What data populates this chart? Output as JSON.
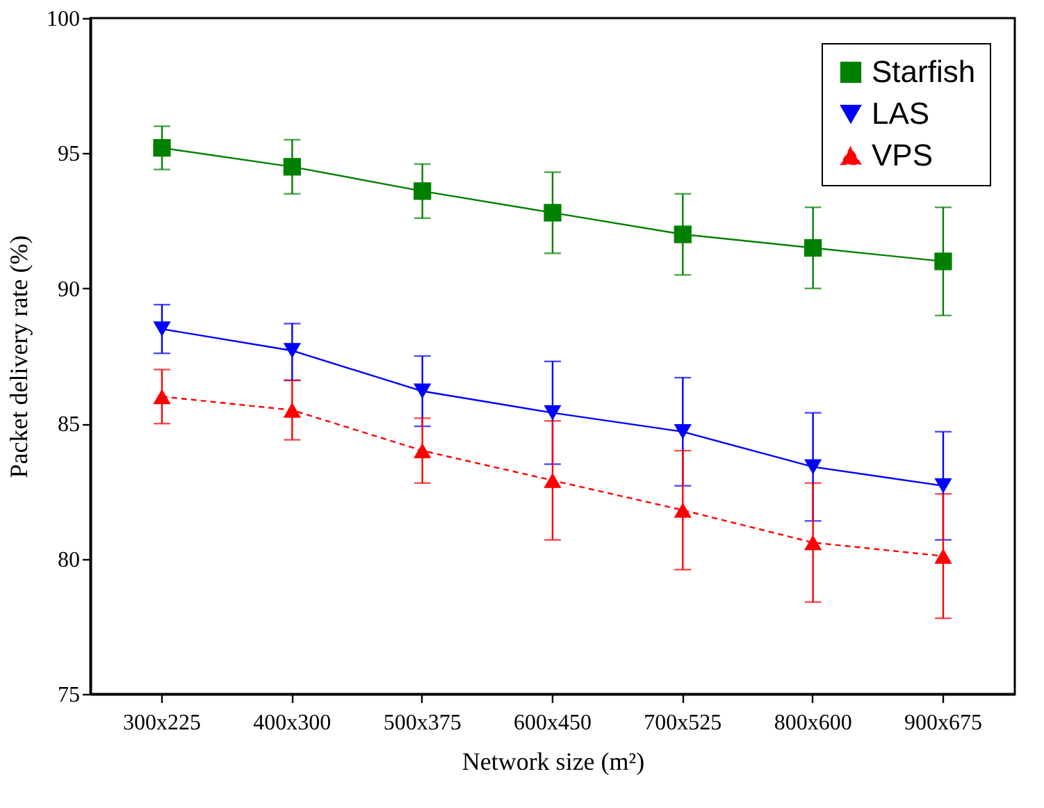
{
  "chart_data": {
    "type": "line",
    "xlabel": "Network size (m²)",
    "ylabel": "Packet delivery rate (%)",
    "categories": [
      "300x225",
      "400x300",
      "500x375",
      "600x450",
      "700x525",
      "800x600",
      "900x675"
    ],
    "ylim": [
      75,
      100
    ],
    "yticks": [
      75,
      80,
      85,
      90,
      95,
      100
    ],
    "grid": false,
    "legend": "top right",
    "series": [
      {
        "name": "Starfish",
        "color": "#008000",
        "marker": "square",
        "line_style": "solid",
        "values": [
          95.2,
          94.5,
          93.6,
          92.8,
          92.0,
          91.5,
          91.0
        ],
        "errors": [
          [
            94.4,
            96.0
          ],
          [
            93.5,
            95.5
          ],
          [
            92.6,
            94.6
          ],
          [
            91.3,
            94.3
          ],
          [
            90.5,
            93.5
          ],
          [
            90.0,
            93.0
          ],
          [
            89.0,
            93.0
          ]
        ]
      },
      {
        "name": "LAS",
        "color": "#0000ff",
        "marker": "triangle-down",
        "line_style": "solid",
        "values": [
          88.5,
          87.7,
          86.2,
          85.4,
          84.7,
          83.4,
          82.7
        ],
        "errors": [
          [
            87.6,
            89.4
          ],
          [
            86.6,
            88.7
          ],
          [
            84.9,
            87.5
          ],
          [
            83.5,
            87.3
          ],
          [
            82.7,
            86.7
          ],
          [
            81.4,
            85.4
          ],
          [
            80.7,
            84.7
          ]
        ]
      },
      {
        "name": "VPS",
        "color": "#ff0000",
        "marker": "triangle",
        "line_style": "dashed",
        "values": [
          86.0,
          85.5,
          84.0,
          82.9,
          81.8,
          80.6,
          80.1
        ],
        "errors": [
          [
            85.0,
            87.0
          ],
          [
            84.4,
            86.6
          ],
          [
            82.8,
            85.2
          ],
          [
            80.7,
            85.1
          ],
          [
            79.6,
            84.0
          ],
          [
            78.4,
            82.8
          ],
          [
            77.8,
            82.4
          ]
        ]
      }
    ]
  }
}
